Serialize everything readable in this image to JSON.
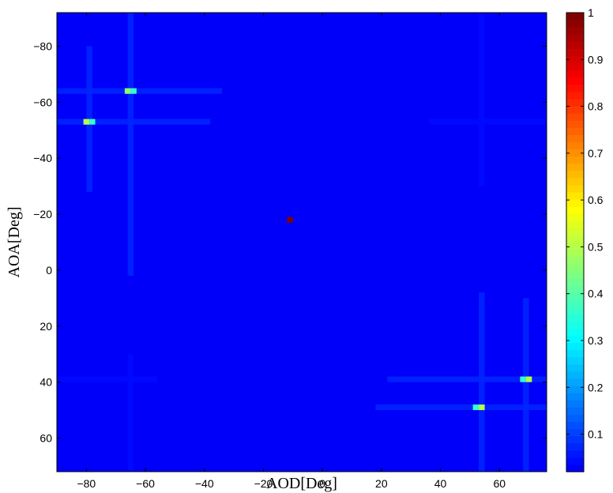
{
  "chart_data": {
    "type": "heatmap",
    "title": "",
    "xlabel": "AOD[Deg]",
    "ylabel": "AOA[Deg]",
    "xlim": [
      -90,
      76
    ],
    "ylim": [
      -92,
      72
    ],
    "y_reversed": true,
    "x_ticks": [
      -80,
      -60,
      -40,
      -20,
      0,
      20,
      40,
      60
    ],
    "y_ticks": [
      -80,
      -60,
      -40,
      -20,
      0,
      20,
      40,
      60
    ],
    "cell_size": [
      2,
      2
    ],
    "background_value": 0.02,
    "colormap": "jet",
    "colorbar": {
      "ticks": [
        0.1,
        0.2,
        0.3,
        0.4,
        0.5,
        0.6,
        0.7,
        0.8,
        0.9,
        1
      ],
      "range": [
        0.02,
        1
      ],
      "levels": 64
    },
    "peaks": [
      {
        "aod": -11,
        "aoa": -18,
        "value": 1.0
      },
      {
        "aod": -80,
        "aoa": -53,
        "value": 0.5
      },
      {
        "aod": -78,
        "aoa": -53,
        "value": 0.37
      },
      {
        "aod": -66,
        "aoa": -64,
        "value": 0.45
      },
      {
        "aod": -64,
        "aoa": -64,
        "value": 0.36
      },
      {
        "aod": 54,
        "aoa": 49,
        "value": 0.5
      },
      {
        "aod": 52,
        "aoa": 49,
        "value": 0.37
      },
      {
        "aod": 70,
        "aoa": 39,
        "value": 0.5
      },
      {
        "aod": 68,
        "aoa": 39,
        "value": 0.37
      }
    ],
    "sidelobes": [
      {
        "orientation": "horizontal",
        "at": -64,
        "from": -90,
        "to": -34,
        "value": 0.07
      },
      {
        "orientation": "vertical",
        "at": -65,
        "from": -92,
        "to": 2,
        "value": 0.07
      },
      {
        "orientation": "horizontal",
        "at": -53,
        "from": -90,
        "to": -38,
        "value": 0.07
      },
      {
        "orientation": "vertical",
        "at": -79,
        "from": -80,
        "to": -28,
        "value": 0.07
      },
      {
        "orientation": "horizontal",
        "at": 39,
        "from": 22,
        "to": 76,
        "value": 0.07
      },
      {
        "orientation": "vertical",
        "at": 69,
        "from": 10,
        "to": 72,
        "value": 0.07
      },
      {
        "orientation": "horizontal",
        "at": 49,
        "from": 18,
        "to": 76,
        "value": 0.07
      },
      {
        "orientation": "vertical",
        "at": 54,
        "from": 8,
        "to": 72,
        "value": 0.07
      },
      {
        "orientation": "horizontal",
        "at": 39,
        "from": -90,
        "to": -56,
        "value": 0.05
      },
      {
        "orientation": "vertical",
        "at": -65,
        "from": 30,
        "to": 72,
        "value": 0.05
      },
      {
        "orientation": "horizontal",
        "at": -53,
        "from": 36,
        "to": 76,
        "value": 0.05
      },
      {
        "orientation": "vertical",
        "at": 54,
        "from": -92,
        "to": -30,
        "value": 0.05
      }
    ]
  }
}
